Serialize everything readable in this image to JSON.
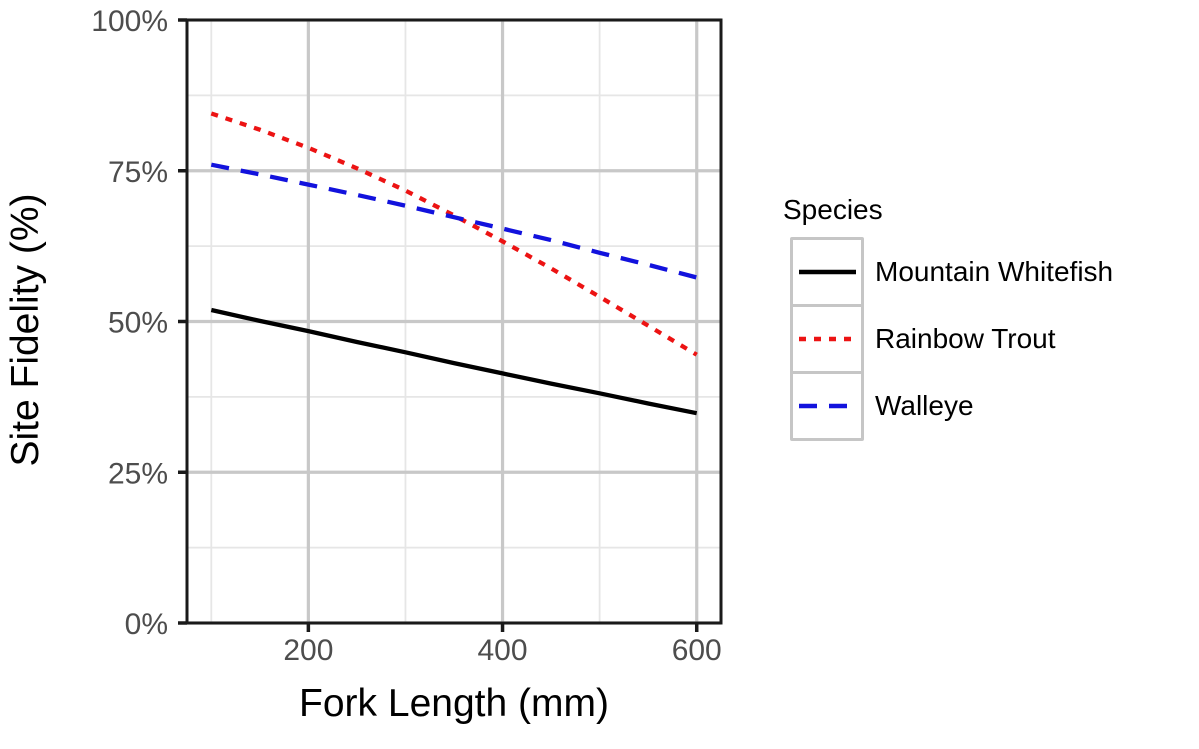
{
  "chart_data": {
    "type": "line",
    "title": "",
    "xlabel": "Fork Length (mm)",
    "ylabel": "Site Fidelity (%)",
    "x_domain": [
      75,
      625
    ],
    "y_domain": [
      0,
      100
    ],
    "x_major_ticks": [
      200,
      400,
      600
    ],
    "x_minor_ticks": [
      100,
      300,
      500
    ],
    "y_major_ticks": [
      0,
      25,
      50,
      75,
      100
    ],
    "y_minor_ticks": [
      12.5,
      37.5,
      62.5,
      87.5
    ],
    "x_tick_labels": [
      "200",
      "400",
      "600"
    ],
    "y_tick_labels": [
      "0%",
      "25%",
      "50%",
      "75%",
      "100%"
    ],
    "grid": true,
    "legend_position": "right",
    "x": [
      100,
      150,
      200,
      250,
      300,
      350,
      400,
      450,
      500,
      550,
      600
    ],
    "series": [
      {
        "name": "Mountain Whitefish",
        "color": "#000000",
        "linetype": "solid",
        "values": [
          51.9,
          50.1,
          48.4,
          46.6,
          44.9,
          43.1,
          41.4,
          39.7,
          38.1,
          36.4,
          34.8
        ]
      },
      {
        "name": "Rainbow Trout",
        "color": "#ec1313",
        "linetype": "dotted",
        "values": [
          84.5,
          81.8,
          78.8,
          75.4,
          71.7,
          67.6,
          63.3,
          58.8,
          54.1,
          49.3,
          44.5
        ]
      },
      {
        "name": "Walleye",
        "color": "#1212dd",
        "linetype": "dashed",
        "values": [
          76.0,
          74.4,
          72.7,
          71.0,
          69.2,
          67.3,
          65.4,
          63.5,
          61.4,
          59.4,
          57.3
        ]
      }
    ]
  },
  "legend": {
    "title": "Species"
  },
  "style_colors": {
    "major_grid": "#c8c8c8",
    "minor_grid": "#e6e6e6",
    "panel_border": "#1a1a1a",
    "tick_mark": "#1a1a1a",
    "tick_text": "#4d4d4d",
    "legend_key_border": "#c6c6c6"
  }
}
